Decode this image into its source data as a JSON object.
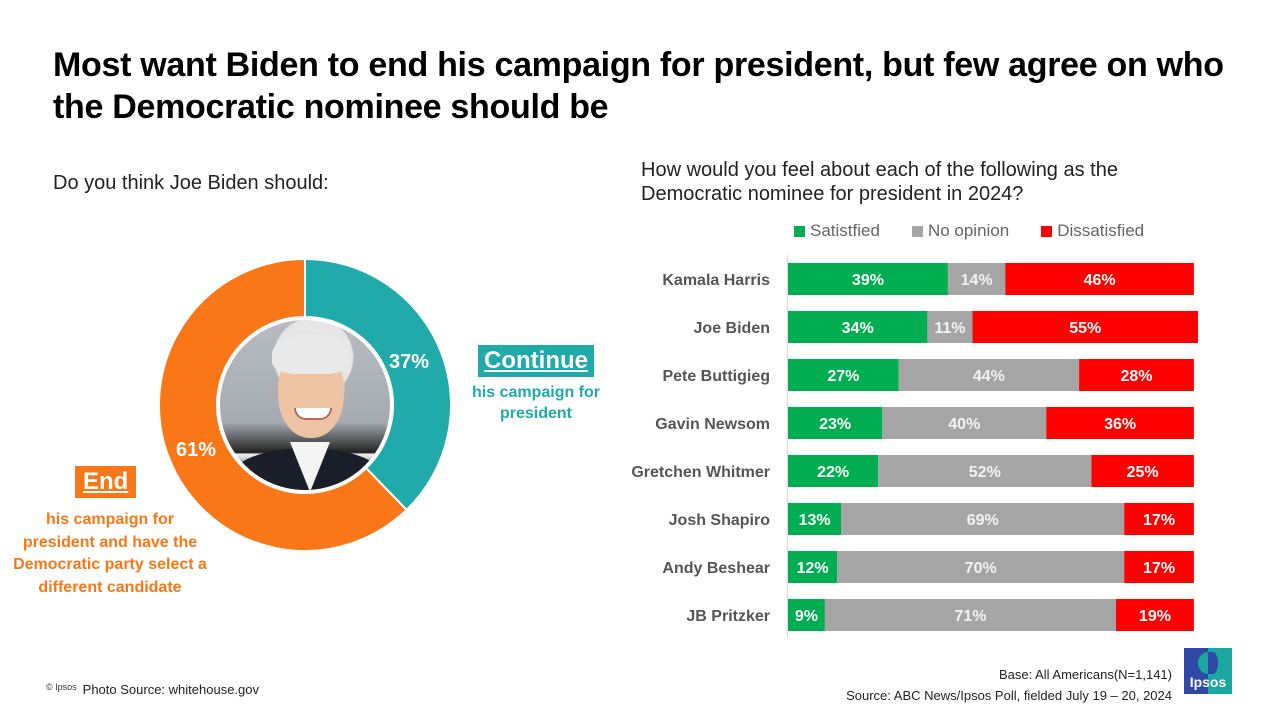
{
  "title": "Most want Biden to end his campaign for president, but few agree on who the Democratic nominee should be",
  "left_panel": {
    "question": "Do you think Joe Biden should:",
    "photo_alt": "Joe Biden portrait",
    "continue": {
      "tag": "Continue",
      "description": "his campaign for president",
      "value_label": "37%"
    },
    "end": {
      "tag": "End",
      "description": "his campaign for president and have the Democratic party select a different candidate",
      "value_label": "61%"
    }
  },
  "right_panel": {
    "question": "How would you feel about each of the following as the Democratic nominee for president in 2024?"
  },
  "colors": {
    "continue": "#20aaa9",
    "end": "#f97716",
    "satisfied": "#00ad50",
    "no_opinion": "#a5a5a5",
    "dissatisfied": "#ff0000"
  },
  "chart_data": [
    {
      "type": "pie",
      "variant": "donut",
      "title": "Do you think Joe Biden should:",
      "categories": [
        "Continue his campaign for president",
        "End his campaign for president and have the Democratic party select a different candidate"
      ],
      "values": [
        37,
        61
      ],
      "labels": [
        "37%",
        "61%"
      ],
      "start": "top",
      "direction": "clockwise"
    },
    {
      "type": "bar",
      "orientation": "horizontal",
      "stacked": true,
      "title": "How would you feel about each of the following as the Democratic nominee for president in 2024?",
      "categories": [
        "Kamala Harris",
        "Joe Biden",
        "Pete Buttigieg",
        "Gavin Newsom",
        "Gretchen Whitmer",
        "Josh Shapiro",
        "Andy Beshear",
        "JB Pritzker"
      ],
      "series": [
        {
          "name": "Satistfied",
          "values": [
            39,
            34,
            27,
            23,
            22,
            13,
            12,
            9
          ]
        },
        {
          "name": "No opinion",
          "values": [
            14,
            11,
            44,
            40,
            52,
            69,
            70,
            71
          ]
        },
        {
          "name": "Dissatisfied",
          "values": [
            46,
            55,
            28,
            36,
            25,
            17,
            17,
            19
          ]
        }
      ],
      "legend_position": "top",
      "xlim": [
        0,
        100
      ],
      "grid": false
    }
  ],
  "footer": {
    "copyright": "© Ipsos",
    "photo_source": "Photo Source: whitehouse.gov",
    "base": "Base: All Americans(N=1,141)",
    "source": "Source: ABC News/Ipsos Poll, fielded July 19 – 20, 2024",
    "logo_text": "Ipsos"
  }
}
